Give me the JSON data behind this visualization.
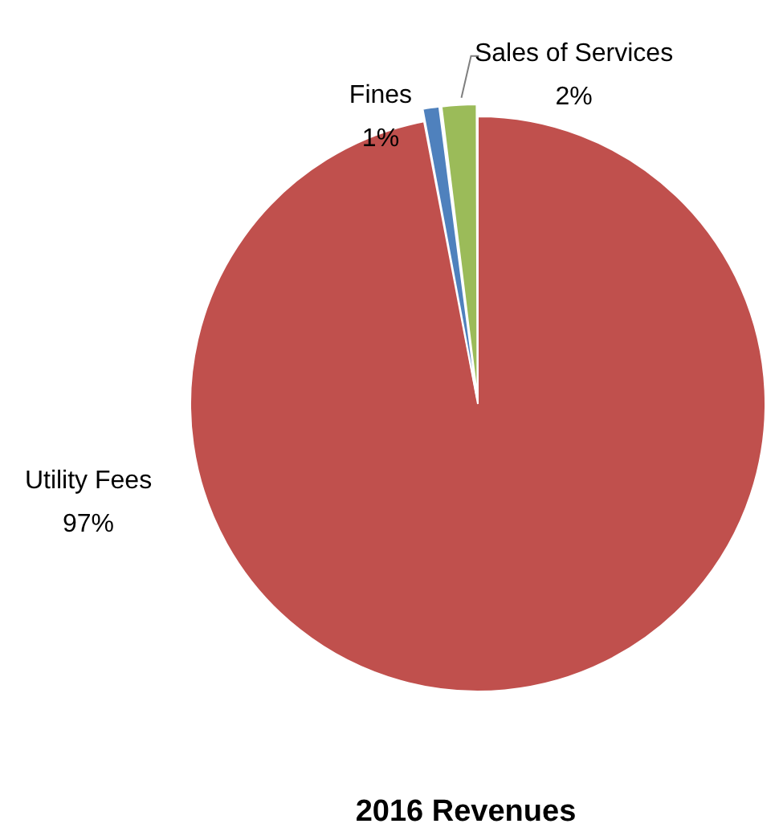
{
  "chart_data": {
    "type": "pie",
    "title": "2016 Revenues",
    "categories": [
      "Utility Fees",
      "Fines",
      "Sales of Services"
    ],
    "values": [
      97,
      1,
      2
    ],
    "colors": [
      "#c0504d",
      "#4f81bd",
      "#9bbb59"
    ],
    "value_labels": [
      "97%",
      "1%",
      "2%"
    ],
    "legend": false
  }
}
